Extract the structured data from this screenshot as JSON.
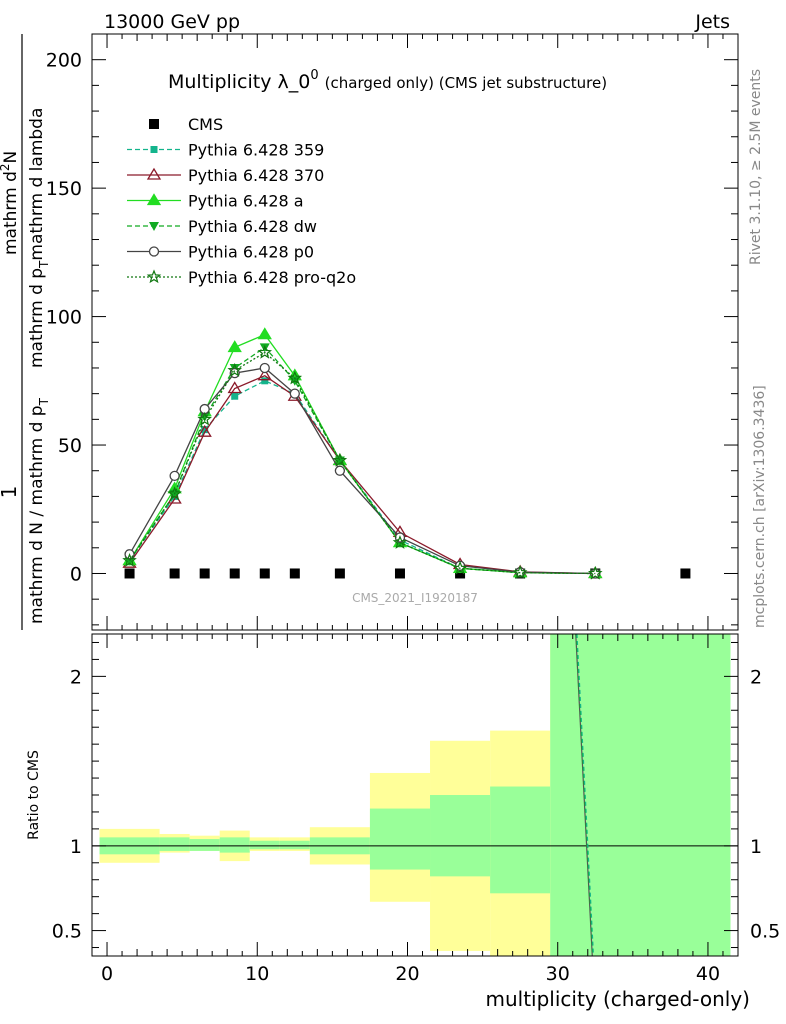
{
  "header": {
    "left": "13000 GeV pp",
    "right": "Jets"
  },
  "side_labels": {
    "top": "Rivet 3.1.10, ≥ 2.5M events",
    "bottom": "mcplots.cern.ch [arXiv:1306.3436]"
  },
  "colors": {
    "cms": "#000000",
    "p359": "#14b48c",
    "p370": "#8b1a2a",
    "pa": "#22dd22",
    "pdw": "#11aa22",
    "pp0": "#444444",
    "pq2o": "#117711",
    "band_yellow": "#ffff99",
    "band_green": "#99ff99"
  },
  "chart_data": [
    {
      "type": "line",
      "title_main": "Multiplicity λ_0",
      "title_sup": "0",
      "title_sub": "(charged only) (CMS jet substructure)",
      "ylabel": "1 / mathrm d N / mathrm d p_T  ·  mathrm d²N / mathrm d p_T mathrm d lambda",
      "ylabel_num_a": "1",
      "ylabel_den_a": "mathrm d N / mathrm d p",
      "ylabel_den_a_sub": "T",
      "ylabel_num_b": "mathrm d",
      "ylabel_num_b_sup": "2",
      "ylabel_num_b_end": "N",
      "ylabel_den_b": "mathrm d p",
      "ylabel_den_b_sub": "T",
      "ylabel_den_b_end": "mathrm d lambda",
      "xlim": [
        -1,
        42
      ],
      "ylim": [
        -22,
        210
      ],
      "y_ticks": [
        0,
        50,
        100,
        150,
        200
      ],
      "y_tick_labels": [
        "0",
        "50",
        "100",
        "150",
        "200"
      ],
      "watermark": "CMS_2021_I1920187",
      "legend_position": "top-left",
      "series": [
        {
          "name": "CMS",
          "key": "cms",
          "style": "data",
          "x": [
            1.5,
            4.5,
            6.5,
            8.5,
            10.5,
            12.5,
            15.5,
            19.5,
            23.5,
            27.5,
            32.5,
            38.5
          ],
          "y": [
            0,
            0,
            0,
            0,
            0,
            0,
            0,
            0,
            0,
            0,
            0,
            0
          ]
        },
        {
          "name": "Pythia 6.428 359",
          "key": "p359",
          "marker": "square",
          "dash": "5,3",
          "x": [
            1.5,
            4.5,
            6.5,
            8.5,
            10.5,
            12.5,
            15.5,
            19.5,
            23.5,
            27.5,
            32.5
          ],
          "y": [
            5,
            30,
            56,
            69,
            75,
            70,
            44,
            13,
            2,
            0.4,
            0
          ]
        },
        {
          "name": "Pythia 6.428 370",
          "key": "p370",
          "marker": "triangle-open",
          "dash": "",
          "x": [
            1.5,
            4.5,
            6.5,
            8.5,
            10.5,
            12.5,
            15.5,
            19.5,
            23.5,
            27.5,
            32.5
          ],
          "y": [
            4,
            29,
            55,
            72,
            77,
            69,
            44,
            16,
            3.5,
            0.6,
            0
          ]
        },
        {
          "name": "Pythia 6.428 a",
          "key": "pa",
          "marker": "triangle",
          "dash": "",
          "x": [
            1.5,
            4.5,
            6.5,
            8.5,
            10.5,
            12.5,
            15.5,
            19.5,
            23.5,
            27.5,
            32.5
          ],
          "y": [
            5,
            33,
            63,
            88,
            93,
            77,
            44,
            12,
            2,
            0.3,
            0
          ]
        },
        {
          "name": "Pythia 6.428 dw",
          "key": "pdw",
          "marker": "triangle-down",
          "dash": "5,3",
          "x": [
            1.5,
            4.5,
            6.5,
            8.5,
            10.5,
            12.5,
            15.5,
            19.5,
            23.5,
            27.5,
            32.5
          ],
          "y": [
            5,
            31,
            61,
            80,
            88,
            75,
            44,
            12,
            2,
            0.3,
            0
          ]
        },
        {
          "name": "Pythia 6.428 p0",
          "key": "pp0",
          "marker": "circle-open",
          "dash": "",
          "x": [
            1.5,
            4.5,
            6.5,
            8.5,
            10.5,
            12.5,
            15.5,
            19.5,
            23.5,
            27.5,
            32.5
          ],
          "y": [
            7.5,
            38,
            64,
            78,
            80,
            70,
            40,
            14,
            3,
            0.5,
            0
          ]
        },
        {
          "name": "Pythia 6.428 pro-q2o",
          "key": "pq2o",
          "marker": "star",
          "dash": "2,2",
          "x": [
            1.5,
            4.5,
            6.5,
            8.5,
            10.5,
            12.5,
            15.5,
            19.5,
            23.5,
            27.5,
            32.5
          ],
          "y": [
            5,
            31,
            60,
            79,
            86,
            76,
            44,
            12,
            2,
            0.3,
            0
          ]
        }
      ]
    },
    {
      "type": "line",
      "ylabel": "Ratio to CMS",
      "xlabel": "multiplicity (charged-only)",
      "xlim": [
        -1,
        42
      ],
      "ylim": [
        0.35,
        2.25
      ],
      "y_ticks": [
        0.5,
        1,
        2
      ],
      "y_tick_labels": [
        "0.5",
        "1",
        "2"
      ],
      "x_ticks": [
        0,
        10,
        20,
        30,
        40
      ],
      "x_tick_labels": [
        "0",
        "10",
        "20",
        "30",
        "40"
      ],
      "uncertainty_bands": [
        {
          "x0": -0.5,
          "x1": 3.5,
          "yellow": [
            0.9,
            1.1
          ],
          "green": [
            0.95,
            1.05
          ]
        },
        {
          "x0": 3.5,
          "x1": 5.5,
          "yellow": [
            0.96,
            1.07
          ],
          "green": [
            0.97,
            1.05
          ]
        },
        {
          "x0": 5.5,
          "x1": 7.5,
          "yellow": [
            0.97,
            1.06
          ],
          "green": [
            0.97,
            1.04
          ]
        },
        {
          "x0": 7.5,
          "x1": 9.5,
          "yellow": [
            0.91,
            1.09
          ],
          "green": [
            0.96,
            1.05
          ]
        },
        {
          "x0": 9.5,
          "x1": 11.5,
          "yellow": [
            0.97,
            1.05
          ],
          "green": [
            0.98,
            1.03
          ]
        },
        {
          "x0": 11.5,
          "x1": 13.5,
          "yellow": [
            0.97,
            1.05
          ],
          "green": [
            0.98,
            1.03
          ]
        },
        {
          "x0": 13.5,
          "x1": 17.5,
          "yellow": [
            0.89,
            1.11
          ],
          "green": [
            0.95,
            1.05
          ]
        },
        {
          "x0": 17.5,
          "x1": 21.5,
          "yellow": [
            0.67,
            1.43
          ],
          "green": [
            0.86,
            1.22
          ]
        },
        {
          "x0": 21.5,
          "x1": 25.5,
          "yellow": [
            0.38,
            1.62
          ],
          "green": [
            0.82,
            1.3
          ]
        },
        {
          "x0": 25.5,
          "x1": 29.5,
          "yellow": [
            0.35,
            1.68
          ],
          "green": [
            0.72,
            1.35
          ]
        },
        {
          "x0": 29.5,
          "x1": 41.5,
          "yellow": [
            0.35,
            2.25
          ],
          "green": [
            0.35,
            2.25
          ]
        }
      ],
      "ratio_line": {
        "x": [
          31.2,
          32.3
        ],
        "y": [
          2.25,
          0.35
        ]
      }
    }
  ]
}
